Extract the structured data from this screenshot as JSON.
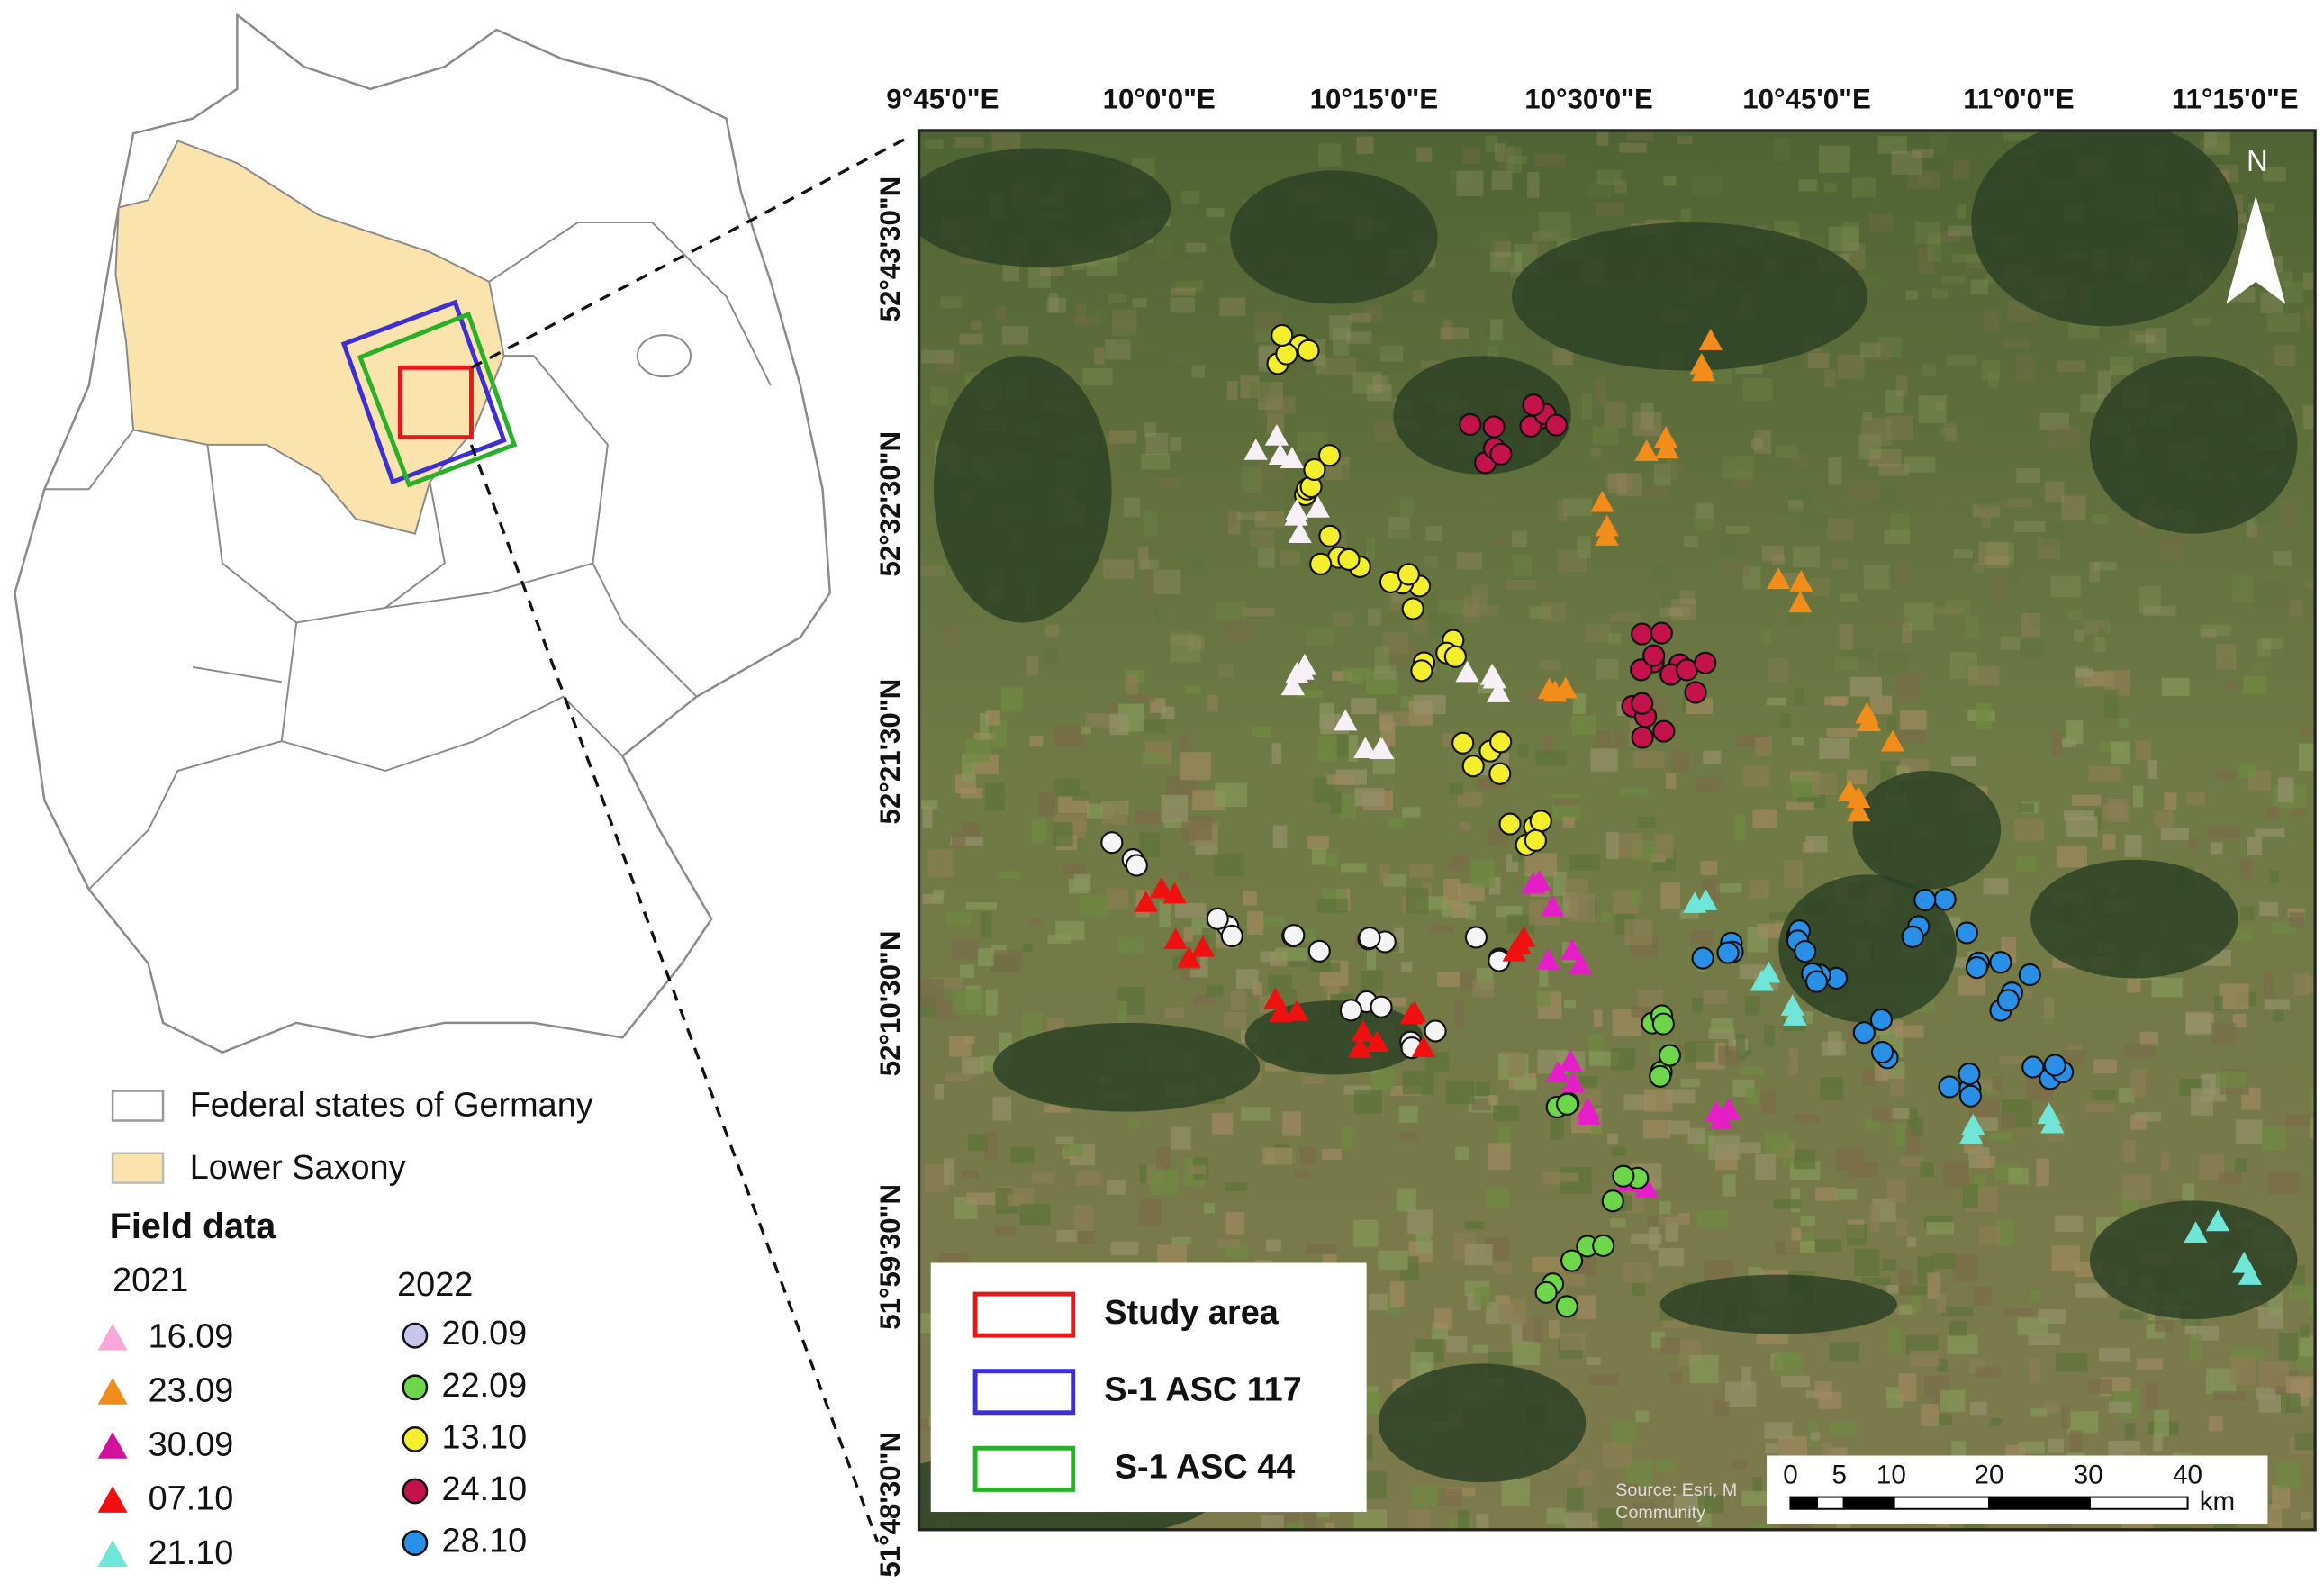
{
  "map": {
    "longitude_labels": [
      "9°45'0\"E",
      "10°0'0\"E",
      "10°15'0\"E",
      "10°30'0\"E",
      "10°45'0\"E",
      "11°0'0\"E",
      "11°15'0\"E"
    ],
    "latitude_labels": [
      "52°43'30\"N",
      "52°32'30\"N",
      "52°21'30\"N",
      "52°10'30\"N",
      "51°59'30\"N",
      "51°48'30\"N"
    ],
    "north_label": "N",
    "source": [
      "Source: Esri, M",
      "Community"
    ],
    "scale_bar": {
      "labels": [
        "0",
        "5",
        "10",
        "20",
        "30",
        "40"
      ],
      "unit": "km"
    },
    "inset_legend": [
      "Study area",
      "S-1 ASC 117",
      "S-1 ASC 44"
    ]
  },
  "legend": {
    "federal_states": "Federal states of Germany",
    "lower_saxony": "Lower Saxony",
    "title": "Field data",
    "year_2021": "2021",
    "year_2022": "2022",
    "dates_2021": [
      "16.09",
      "23.09",
      "30.09",
      "07.10",
      "21.10"
    ],
    "dates_2022": [
      "20.09",
      "22.09",
      "13.10",
      "24.10",
      "28.10"
    ]
  }
}
